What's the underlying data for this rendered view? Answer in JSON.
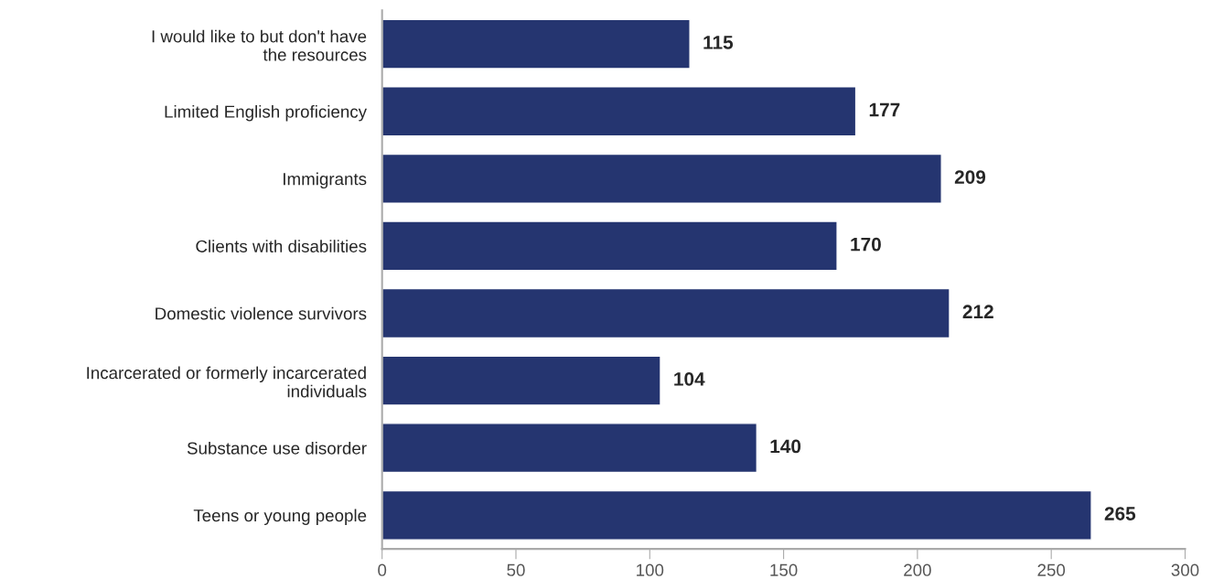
{
  "chart_data": {
    "type": "bar",
    "orientation": "horizontal",
    "categories": [
      "I would like to but don't have\nthe resources",
      "Limited English proficiency",
      "Immigrants",
      "Clients with disabilities",
      "Domestic violence survivors",
      "Incarcerated or formerly incarcerated\nindividuals",
      "Substance use disorder",
      "Teens or young people"
    ],
    "values": [
      115,
      177,
      209,
      170,
      212,
      104,
      140,
      265
    ],
    "color": "#253570",
    "xlim": [
      0,
      300
    ],
    "xticks": [
      0,
      50,
      100,
      150,
      200,
      250,
      300
    ],
    "data_labels": true,
    "grid": false,
    "legend": false
  }
}
